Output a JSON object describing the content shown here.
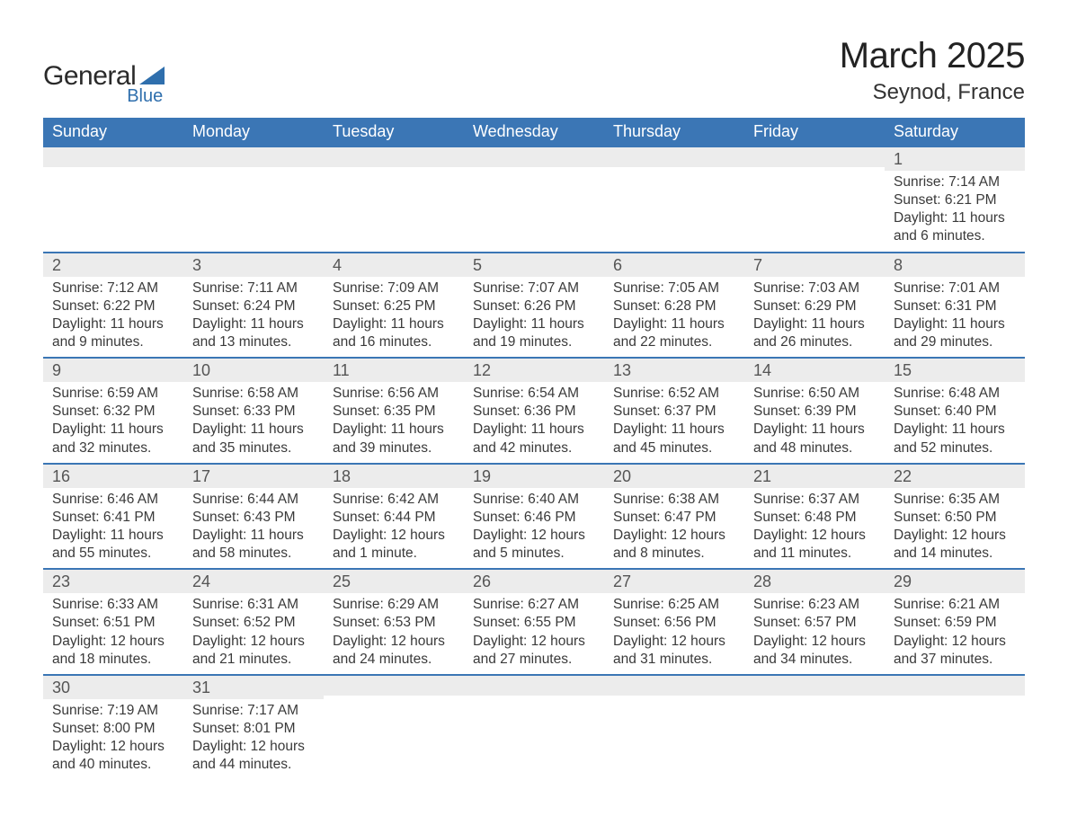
{
  "brand": {
    "name_part1": "General",
    "name_part2": "Blue",
    "color_primary": "#2f6fad",
    "color_text": "#2a2a2a"
  },
  "title": "March 2025",
  "subtitle": "Seynod, France",
  "colors": {
    "header_bg": "#3b76b5",
    "header_text": "#ffffff",
    "daynum_bg": "#ececec",
    "daynum_text": "#555555",
    "body_text": "#3a3a3a",
    "row_border": "#3b76b5",
    "page_bg": "#ffffff"
  },
  "fonts": {
    "family": "Arial",
    "title_size_pt": 40,
    "subtitle_size_pt": 24,
    "header_size_pt": 18,
    "daynum_size_pt": 18,
    "body_size_pt": 15
  },
  "headers": [
    "Sunday",
    "Monday",
    "Tuesday",
    "Wednesday",
    "Thursday",
    "Friday",
    "Saturday"
  ],
  "weeks": [
    [
      {
        "day": "",
        "sunrise": "",
        "sunset": "",
        "daylight1": "",
        "daylight2": ""
      },
      {
        "day": "",
        "sunrise": "",
        "sunset": "",
        "daylight1": "",
        "daylight2": ""
      },
      {
        "day": "",
        "sunrise": "",
        "sunset": "",
        "daylight1": "",
        "daylight2": ""
      },
      {
        "day": "",
        "sunrise": "",
        "sunset": "",
        "daylight1": "",
        "daylight2": ""
      },
      {
        "day": "",
        "sunrise": "",
        "sunset": "",
        "daylight1": "",
        "daylight2": ""
      },
      {
        "day": "",
        "sunrise": "",
        "sunset": "",
        "daylight1": "",
        "daylight2": ""
      },
      {
        "day": "1",
        "sunrise": "Sunrise: 7:14 AM",
        "sunset": "Sunset: 6:21 PM",
        "daylight1": "Daylight: 11 hours",
        "daylight2": "and 6 minutes."
      }
    ],
    [
      {
        "day": "2",
        "sunrise": "Sunrise: 7:12 AM",
        "sunset": "Sunset: 6:22 PM",
        "daylight1": "Daylight: 11 hours",
        "daylight2": "and 9 minutes."
      },
      {
        "day": "3",
        "sunrise": "Sunrise: 7:11 AM",
        "sunset": "Sunset: 6:24 PM",
        "daylight1": "Daylight: 11 hours",
        "daylight2": "and 13 minutes."
      },
      {
        "day": "4",
        "sunrise": "Sunrise: 7:09 AM",
        "sunset": "Sunset: 6:25 PM",
        "daylight1": "Daylight: 11 hours",
        "daylight2": "and 16 minutes."
      },
      {
        "day": "5",
        "sunrise": "Sunrise: 7:07 AM",
        "sunset": "Sunset: 6:26 PM",
        "daylight1": "Daylight: 11 hours",
        "daylight2": "and 19 minutes."
      },
      {
        "day": "6",
        "sunrise": "Sunrise: 7:05 AM",
        "sunset": "Sunset: 6:28 PM",
        "daylight1": "Daylight: 11 hours",
        "daylight2": "and 22 minutes."
      },
      {
        "day": "7",
        "sunrise": "Sunrise: 7:03 AM",
        "sunset": "Sunset: 6:29 PM",
        "daylight1": "Daylight: 11 hours",
        "daylight2": "and 26 minutes."
      },
      {
        "day": "8",
        "sunrise": "Sunrise: 7:01 AM",
        "sunset": "Sunset: 6:31 PM",
        "daylight1": "Daylight: 11 hours",
        "daylight2": "and 29 minutes."
      }
    ],
    [
      {
        "day": "9",
        "sunrise": "Sunrise: 6:59 AM",
        "sunset": "Sunset: 6:32 PM",
        "daylight1": "Daylight: 11 hours",
        "daylight2": "and 32 minutes."
      },
      {
        "day": "10",
        "sunrise": "Sunrise: 6:58 AM",
        "sunset": "Sunset: 6:33 PM",
        "daylight1": "Daylight: 11 hours",
        "daylight2": "and 35 minutes."
      },
      {
        "day": "11",
        "sunrise": "Sunrise: 6:56 AM",
        "sunset": "Sunset: 6:35 PM",
        "daylight1": "Daylight: 11 hours",
        "daylight2": "and 39 minutes."
      },
      {
        "day": "12",
        "sunrise": "Sunrise: 6:54 AM",
        "sunset": "Sunset: 6:36 PM",
        "daylight1": "Daylight: 11 hours",
        "daylight2": "and 42 minutes."
      },
      {
        "day": "13",
        "sunrise": "Sunrise: 6:52 AM",
        "sunset": "Sunset: 6:37 PM",
        "daylight1": "Daylight: 11 hours",
        "daylight2": "and 45 minutes."
      },
      {
        "day": "14",
        "sunrise": "Sunrise: 6:50 AM",
        "sunset": "Sunset: 6:39 PM",
        "daylight1": "Daylight: 11 hours",
        "daylight2": "and 48 minutes."
      },
      {
        "day": "15",
        "sunrise": "Sunrise: 6:48 AM",
        "sunset": "Sunset: 6:40 PM",
        "daylight1": "Daylight: 11 hours",
        "daylight2": "and 52 minutes."
      }
    ],
    [
      {
        "day": "16",
        "sunrise": "Sunrise: 6:46 AM",
        "sunset": "Sunset: 6:41 PM",
        "daylight1": "Daylight: 11 hours",
        "daylight2": "and 55 minutes."
      },
      {
        "day": "17",
        "sunrise": "Sunrise: 6:44 AM",
        "sunset": "Sunset: 6:43 PM",
        "daylight1": "Daylight: 11 hours",
        "daylight2": "and 58 minutes."
      },
      {
        "day": "18",
        "sunrise": "Sunrise: 6:42 AM",
        "sunset": "Sunset: 6:44 PM",
        "daylight1": "Daylight: 12 hours",
        "daylight2": "and 1 minute."
      },
      {
        "day": "19",
        "sunrise": "Sunrise: 6:40 AM",
        "sunset": "Sunset: 6:46 PM",
        "daylight1": "Daylight: 12 hours",
        "daylight2": "and 5 minutes."
      },
      {
        "day": "20",
        "sunrise": "Sunrise: 6:38 AM",
        "sunset": "Sunset: 6:47 PM",
        "daylight1": "Daylight: 12 hours",
        "daylight2": "and 8 minutes."
      },
      {
        "day": "21",
        "sunrise": "Sunrise: 6:37 AM",
        "sunset": "Sunset: 6:48 PM",
        "daylight1": "Daylight: 12 hours",
        "daylight2": "and 11 minutes."
      },
      {
        "day": "22",
        "sunrise": "Sunrise: 6:35 AM",
        "sunset": "Sunset: 6:50 PM",
        "daylight1": "Daylight: 12 hours",
        "daylight2": "and 14 minutes."
      }
    ],
    [
      {
        "day": "23",
        "sunrise": "Sunrise: 6:33 AM",
        "sunset": "Sunset: 6:51 PM",
        "daylight1": "Daylight: 12 hours",
        "daylight2": "and 18 minutes."
      },
      {
        "day": "24",
        "sunrise": "Sunrise: 6:31 AM",
        "sunset": "Sunset: 6:52 PM",
        "daylight1": "Daylight: 12 hours",
        "daylight2": "and 21 minutes."
      },
      {
        "day": "25",
        "sunrise": "Sunrise: 6:29 AM",
        "sunset": "Sunset: 6:53 PM",
        "daylight1": "Daylight: 12 hours",
        "daylight2": "and 24 minutes."
      },
      {
        "day": "26",
        "sunrise": "Sunrise: 6:27 AM",
        "sunset": "Sunset: 6:55 PM",
        "daylight1": "Daylight: 12 hours",
        "daylight2": "and 27 minutes."
      },
      {
        "day": "27",
        "sunrise": "Sunrise: 6:25 AM",
        "sunset": "Sunset: 6:56 PM",
        "daylight1": "Daylight: 12 hours",
        "daylight2": "and 31 minutes."
      },
      {
        "day": "28",
        "sunrise": "Sunrise: 6:23 AM",
        "sunset": "Sunset: 6:57 PM",
        "daylight1": "Daylight: 12 hours",
        "daylight2": "and 34 minutes."
      },
      {
        "day": "29",
        "sunrise": "Sunrise: 6:21 AM",
        "sunset": "Sunset: 6:59 PM",
        "daylight1": "Daylight: 12 hours",
        "daylight2": "and 37 minutes."
      }
    ],
    [
      {
        "day": "30",
        "sunrise": "Sunrise: 7:19 AM",
        "sunset": "Sunset: 8:00 PM",
        "daylight1": "Daylight: 12 hours",
        "daylight2": "and 40 minutes."
      },
      {
        "day": "31",
        "sunrise": "Sunrise: 7:17 AM",
        "sunset": "Sunset: 8:01 PM",
        "daylight1": "Daylight: 12 hours",
        "daylight2": "and 44 minutes."
      },
      {
        "day": "",
        "sunrise": "",
        "sunset": "",
        "daylight1": "",
        "daylight2": ""
      },
      {
        "day": "",
        "sunrise": "",
        "sunset": "",
        "daylight1": "",
        "daylight2": ""
      },
      {
        "day": "",
        "sunrise": "",
        "sunset": "",
        "daylight1": "",
        "daylight2": ""
      },
      {
        "day": "",
        "sunrise": "",
        "sunset": "",
        "daylight1": "",
        "daylight2": ""
      },
      {
        "day": "",
        "sunrise": "",
        "sunset": "",
        "daylight1": "",
        "daylight2": ""
      }
    ]
  ]
}
